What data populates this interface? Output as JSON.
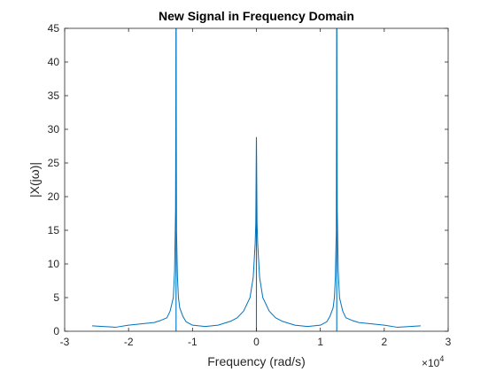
{
  "chart_data": {
    "type": "line",
    "title": "New Signal in Frequency Domain",
    "xlabel": "Frequency (rad/s)",
    "ylabel": "|X(jω)|",
    "x_exponent_base": "×10",
    "x_exponent_power": "4",
    "xlim": [
      -3,
      3
    ],
    "ylim": [
      0,
      45
    ],
    "x_ticks": [
      -3,
      -2,
      -1,
      0,
      1,
      2,
      3
    ],
    "y_ticks": [
      0,
      5,
      10,
      15,
      20,
      25,
      30,
      35,
      40,
      45
    ],
    "x_tick_labels": [
      "-3",
      "-2",
      "-1",
      "0",
      "1",
      "2",
      "3"
    ],
    "y_tick_labels": [
      "0",
      "5",
      "10",
      "15",
      "20",
      "25",
      "30",
      "35",
      "40",
      "45"
    ],
    "grid": false,
    "line_color": "#0072BD",
    "x_range": [
      -2.57,
      2.57
    ],
    "peaks": [
      {
        "x": -1.257,
        "y": 45
      },
      {
        "x": 0,
        "y": 28.8
      },
      {
        "x": 1.257,
        "y": 45
      }
    ],
    "series": [
      {
        "x": [
          -2.57,
          -2.4,
          -2.2,
          -2.0,
          -1.8,
          -1.6,
          -1.5,
          -1.4,
          -1.35,
          -1.3,
          -1.28,
          -1.265,
          -1.257,
          -1.25,
          -1.235,
          -1.22,
          -1.2,
          -1.15,
          -1.1,
          -1.0,
          -0.9,
          -0.8,
          -0.7,
          -0.6,
          -0.5,
          -0.4,
          -0.3,
          -0.2,
          -0.1,
          -0.05,
          -0.02,
          -0.01,
          0,
          0.01,
          0.02,
          0.05,
          0.1,
          0.2,
          0.3,
          0.4,
          0.5,
          0.6,
          0.7,
          0.8,
          0.9,
          1.0,
          1.1,
          1.15,
          1.2,
          1.22,
          1.235,
          1.25,
          1.257,
          1.265,
          1.28,
          1.3,
          1.35,
          1.4,
          1.5,
          1.6,
          1.8,
          2.0,
          2.2,
          2.4,
          2.57
        ],
        "y": [
          0.8,
          0.7,
          0.6,
          0.9,
          1.1,
          1.3,
          1.6,
          2.0,
          3.0,
          5.0,
          9.0,
          18.0,
          45.0,
          15.0,
          8.0,
          5.0,
          3.5,
          2.2,
          1.4,
          0.9,
          0.8,
          0.7,
          0.8,
          0.9,
          1.2,
          1.5,
          2.0,
          3.0,
          5.0,
          8.0,
          13.0,
          16.0,
          28.8,
          16.0,
          13.0,
          8.0,
          5.0,
          3.0,
          2.0,
          1.5,
          1.2,
          0.9,
          0.8,
          0.7,
          0.8,
          0.9,
          1.4,
          2.2,
          3.5,
          5.0,
          8.0,
          15.0,
          45.0,
          18.0,
          9.0,
          5.0,
          3.0,
          2.0,
          1.6,
          1.3,
          1.1,
          0.9,
          0.6,
          0.7,
          0.8
        ]
      }
    ]
  }
}
